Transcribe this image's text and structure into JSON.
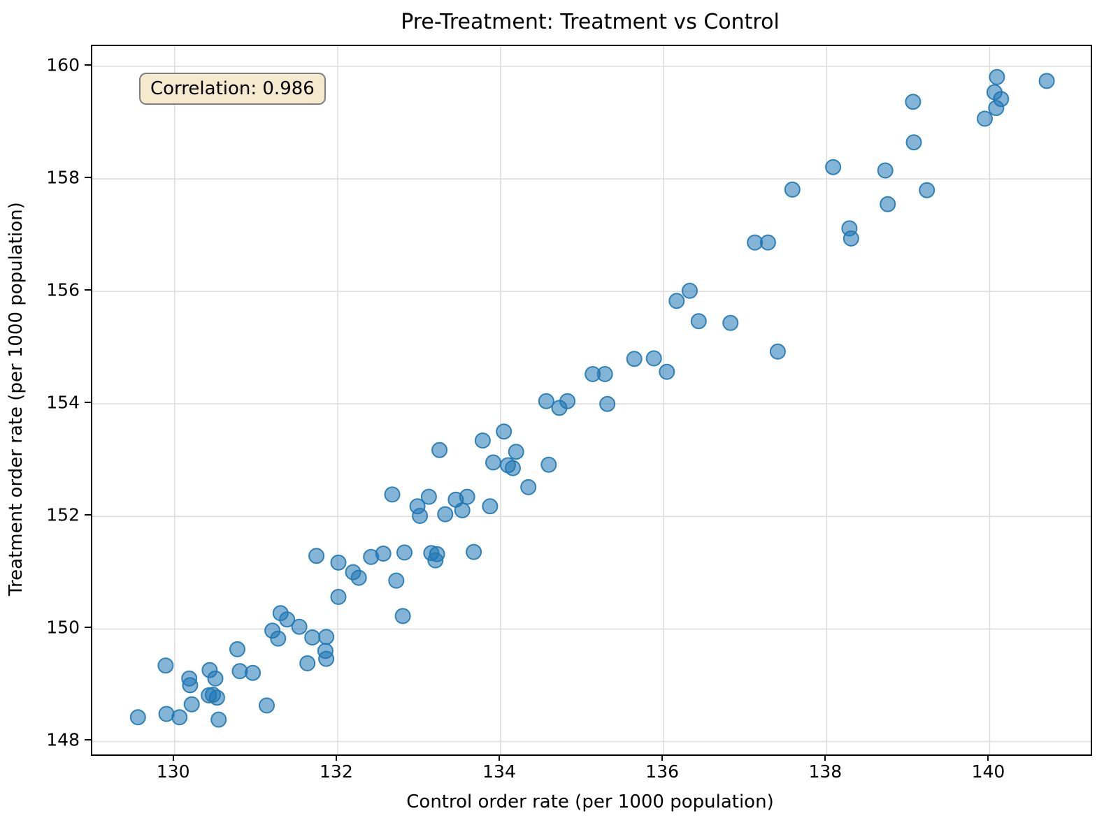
{
  "title": "Pre-Treatment: Treatment vs Control",
  "annotation": {
    "label": "Correlation: 0.986",
    "bg": "#f5e9ce",
    "border": "#7f7f7f"
  },
  "colors": {
    "point_fill": "#1f77b4",
    "point_edge": "#1f77b4",
    "grid": "#dddddd",
    "spine": "#000000"
  },
  "chart_data": {
    "type": "scatter",
    "title": "Pre-Treatment: Treatment vs Control",
    "xlabel": "Control order rate (per 1000 population)",
    "ylabel": "Treatment order rate (per 1000 population)",
    "xlim": [
      128.99,
      141.24
    ],
    "ylim": [
      147.77,
      160.36
    ],
    "xticks": [
      130,
      132,
      134,
      136,
      138,
      140
    ],
    "yticks": [
      148,
      150,
      152,
      154,
      156,
      158,
      160
    ],
    "grid": true,
    "legend": null,
    "annotation_text": "Correlation: 0.986",
    "marker": {
      "radius": 10.5,
      "fill_opacity": 0.55,
      "edge_opacity": 0.9,
      "edge_width": 2
    },
    "points": [
      [
        129.55,
        148.43
      ],
      [
        129.89,
        149.35
      ],
      [
        129.9,
        148.49
      ],
      [
        130.06,
        148.43
      ],
      [
        130.18,
        149.12
      ],
      [
        130.19,
        149.0
      ],
      [
        130.21,
        148.66
      ],
      [
        130.42,
        148.82
      ],
      [
        130.43,
        149.27
      ],
      [
        130.47,
        148.83
      ],
      [
        130.5,
        149.12
      ],
      [
        130.52,
        148.78
      ],
      [
        130.54,
        148.39
      ],
      [
        130.77,
        149.64
      ],
      [
        130.8,
        149.25
      ],
      [
        130.96,
        149.22
      ],
      [
        131.13,
        148.64
      ],
      [
        131.2,
        149.97
      ],
      [
        131.27,
        149.83
      ],
      [
        131.3,
        150.28
      ],
      [
        131.38,
        150.17
      ],
      [
        131.53,
        150.04
      ],
      [
        131.63,
        149.39
      ],
      [
        131.69,
        149.85
      ],
      [
        131.74,
        151.3
      ],
      [
        131.85,
        149.61
      ],
      [
        131.86,
        149.86
      ],
      [
        131.86,
        149.47
      ],
      [
        132.01,
        151.18
      ],
      [
        132.01,
        150.57
      ],
      [
        132.19,
        151.01
      ],
      [
        132.26,
        150.91
      ],
      [
        132.41,
        151.28
      ],
      [
        132.56,
        151.34
      ],
      [
        132.67,
        152.39
      ],
      [
        132.72,
        150.86
      ],
      [
        132.8,
        150.23
      ],
      [
        132.82,
        151.36
      ],
      [
        132.98,
        152.18
      ],
      [
        133.01,
        152.01
      ],
      [
        133.12,
        152.35
      ],
      [
        133.15,
        151.35
      ],
      [
        133.2,
        151.22
      ],
      [
        133.22,
        151.33
      ],
      [
        133.25,
        153.18
      ],
      [
        133.32,
        152.04
      ],
      [
        133.45,
        152.3
      ],
      [
        133.53,
        152.11
      ],
      [
        133.59,
        152.35
      ],
      [
        133.67,
        151.37
      ],
      [
        133.78,
        153.35
      ],
      [
        133.87,
        152.18
      ],
      [
        133.91,
        152.96
      ],
      [
        134.04,
        153.51
      ],
      [
        134.09,
        152.91
      ],
      [
        134.15,
        152.86
      ],
      [
        134.19,
        153.15
      ],
      [
        134.34,
        152.52
      ],
      [
        134.56,
        154.05
      ],
      [
        134.59,
        152.92
      ],
      [
        134.72,
        153.93
      ],
      [
        134.82,
        154.05
      ],
      [
        135.13,
        154.53
      ],
      [
        135.28,
        154.53
      ],
      [
        135.31,
        154.0
      ],
      [
        135.64,
        154.8
      ],
      [
        135.88,
        154.81
      ],
      [
        136.04,
        154.57
      ],
      [
        136.16,
        155.83
      ],
      [
        136.32,
        156.01
      ],
      [
        136.43,
        155.47
      ],
      [
        136.82,
        155.44
      ],
      [
        137.12,
        156.87
      ],
      [
        137.28,
        156.87
      ],
      [
        137.4,
        154.93
      ],
      [
        137.58,
        157.81
      ],
      [
        138.08,
        158.21
      ],
      [
        138.28,
        157.12
      ],
      [
        138.3,
        156.94
      ],
      [
        138.72,
        158.15
      ],
      [
        138.75,
        157.55
      ],
      [
        139.06,
        159.37
      ],
      [
        139.07,
        158.65
      ],
      [
        139.23,
        157.8
      ],
      [
        139.94,
        159.07
      ],
      [
        140.06,
        159.54
      ],
      [
        140.08,
        159.26
      ],
      [
        140.09,
        159.81
      ],
      [
        140.14,
        159.42
      ],
      [
        140.7,
        159.74
      ]
    ]
  }
}
